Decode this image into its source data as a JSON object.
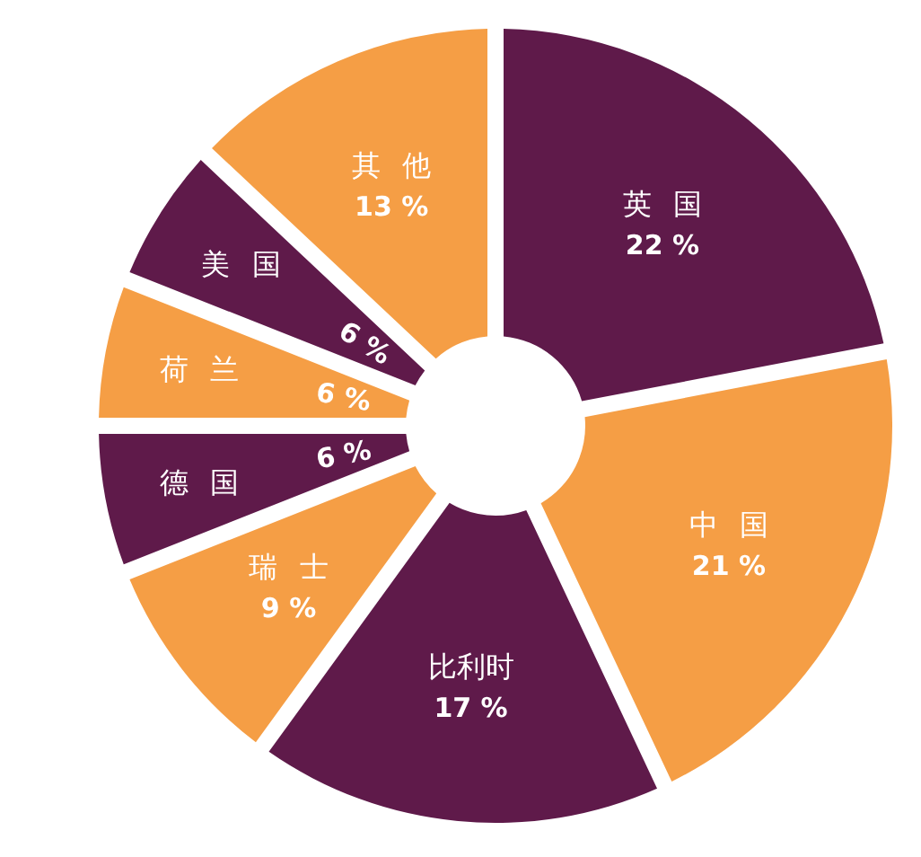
{
  "chart_data": {
    "type": "donut",
    "categories": [
      "英 国",
      "中 国",
      "比利时",
      "瑞 士",
      "德 国",
      "荷 兰",
      "美 国",
      "其 他"
    ],
    "values": [
      22,
      21,
      17,
      9,
      6,
      6,
      6,
      13
    ],
    "colors": [
      "#5f1a4a",
      "#f59e45",
      "#5f1a4a",
      "#f59e45",
      "#5f1a4a",
      "#f59e45",
      "#5f1a4a",
      "#f59e45"
    ],
    "value_labels": [
      "22 %",
      "21 %",
      "17 %",
      "9 %",
      "6 %",
      "6 %",
      "6 %",
      "13 %"
    ]
  }
}
